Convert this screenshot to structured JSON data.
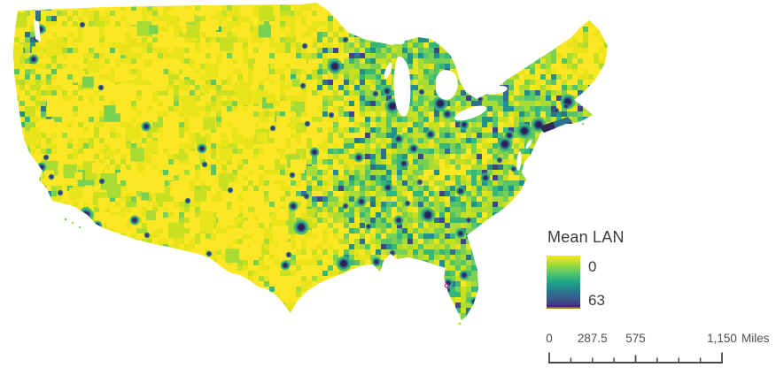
{
  "figure": {
    "type": "choropleth_map",
    "region": "Contiguous United States (county-level)",
    "colormap": "viridis"
  },
  "legend": {
    "title": "Mean LAN",
    "min_label": "0",
    "max_label": "63"
  },
  "scale_bar": {
    "labels": [
      "0",
      "287.5",
      "575",
      "1,150"
    ],
    "unit": "Miles"
  },
  "colors": {
    "ramp_top": "#fde725",
    "ramp_middle": "#21918c",
    "ramp_bottom": "#440154",
    "ramp_bottom_edge": "#8f7a15",
    "legend_text": "#3c3c3c",
    "scale_text": "#4f4f4f",
    "scale_line": "#4a4a4a",
    "map_background": "#ffffff"
  },
  "map_data": {
    "type": "heatmap",
    "variable": "Mean LAN",
    "value_range": [
      0,
      63
    ],
    "low_color_meaning": "0 (yellow)",
    "high_color_meaning": "63 (dark purple)",
    "pattern": "Western interior counties mostly low (yellow); Pacific coast and eastern half mixed green/teal; dark high-value clusters at major metropolitan areas",
    "scale_bar_miles": [
      0,
      287.5,
      575,
      1150
    ]
  }
}
